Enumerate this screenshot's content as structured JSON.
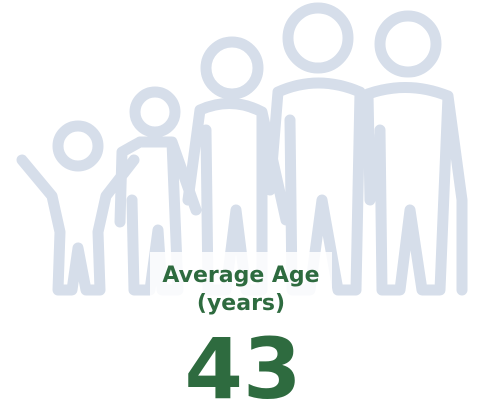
{
  "stat": {
    "label_lines": [
      "Average Age",
      "(years)"
    ],
    "value": 43
  }
}
